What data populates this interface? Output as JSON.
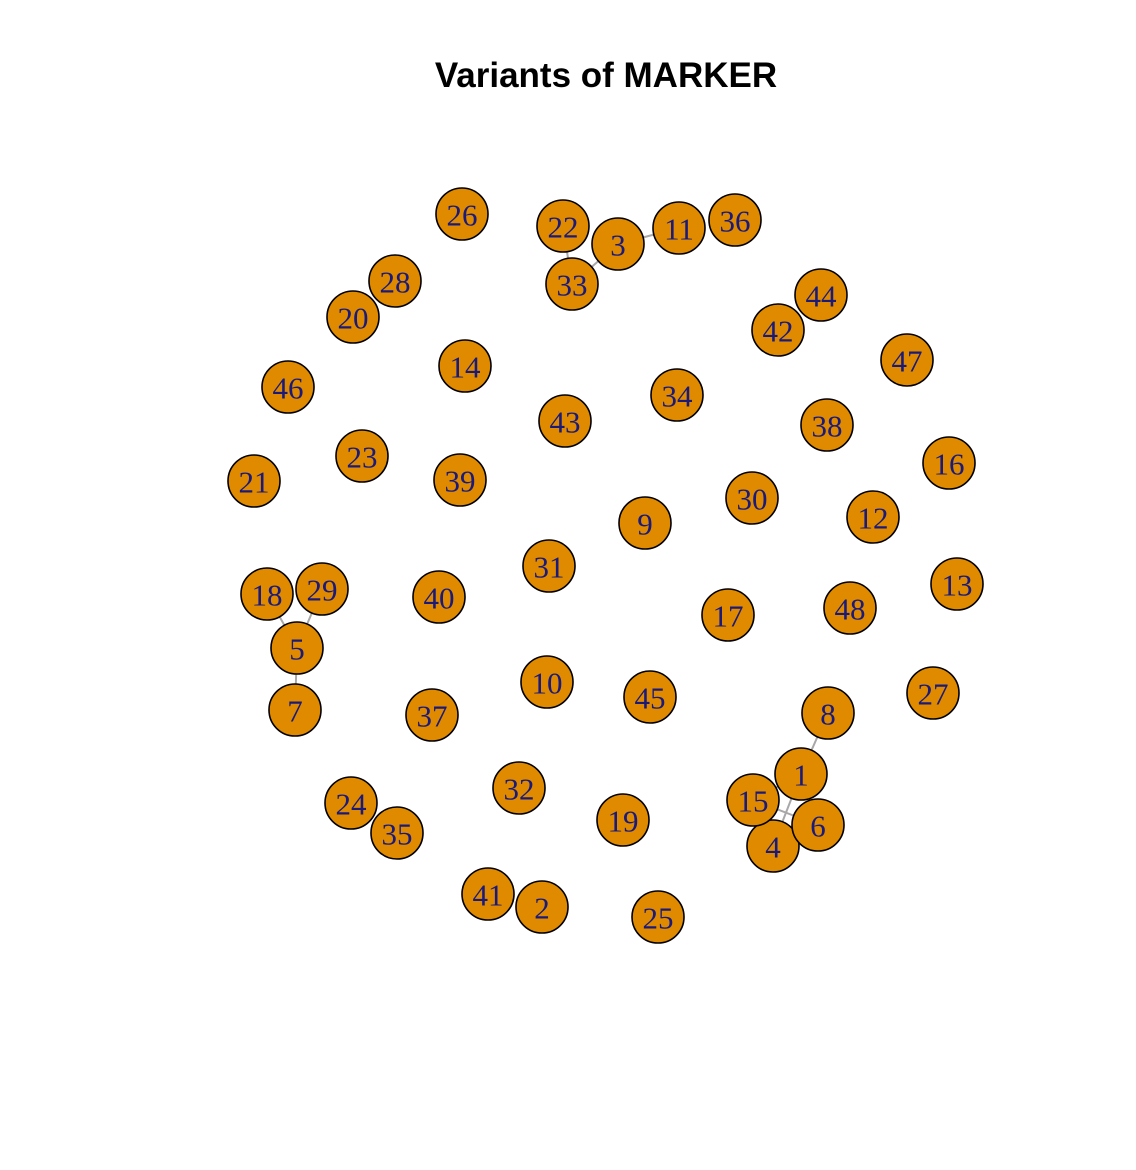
{
  "title": "Variants of MARKER",
  "colors": {
    "node_fill": "#E08A00",
    "node_label": "#1A1A7A",
    "edge": "#A8A8A8"
  },
  "graph": {
    "nodes": [
      "1",
      "2",
      "3",
      "4",
      "5",
      "6",
      "7",
      "8",
      "9",
      "10",
      "11",
      "12",
      "13",
      "14",
      "15",
      "16",
      "17",
      "18",
      "19",
      "20",
      "21",
      "22",
      "23",
      "24",
      "25",
      "26",
      "27",
      "28",
      "29",
      "30",
      "31",
      "32",
      "33",
      "34",
      "35",
      "36",
      "37",
      "38",
      "39",
      "40",
      "41",
      "42",
      "43",
      "44",
      "45",
      "46",
      "47",
      "48"
    ],
    "edges": [
      [
        "22",
        "33"
      ],
      [
        "3",
        "33"
      ],
      [
        "3",
        "11"
      ],
      [
        "18",
        "5"
      ],
      [
        "29",
        "5"
      ],
      [
        "5",
        "7"
      ],
      [
        "8",
        "1"
      ],
      [
        "1",
        "15"
      ],
      [
        "1",
        "4"
      ],
      [
        "1",
        "6"
      ],
      [
        "15",
        "4"
      ],
      [
        "15",
        "6"
      ],
      [
        "4",
        "6"
      ]
    ]
  }
}
